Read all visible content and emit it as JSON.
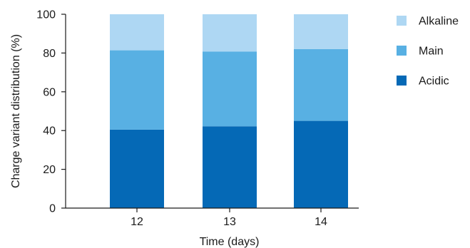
{
  "chart_data": {
    "type": "bar",
    "stacked": true,
    "categories": [
      "12",
      "13",
      "14"
    ],
    "series": [
      {
        "name": "Acidic",
        "values": [
          40.5,
          42.2,
          45.0
        ],
        "color": "#0569b6"
      },
      {
        "name": "Main",
        "values": [
          40.9,
          38.6,
          37.0
        ],
        "color": "#58b0e3"
      },
      {
        "name": "Alkaline",
        "values": [
          18.6,
          19.2,
          18.0
        ],
        "color": "#aed7f3"
      }
    ],
    "xlabel": "Time (days)",
    "ylabel": "Charge variant distribution (%)",
    "ylim": [
      0,
      100
    ],
    "yticks": [
      "0",
      "20",
      "40",
      "60",
      "80",
      "100"
    ],
    "legend_position": "right",
    "legend_order": [
      "Alkaline",
      "Main",
      "Acidic"
    ],
    "grid": false
  }
}
